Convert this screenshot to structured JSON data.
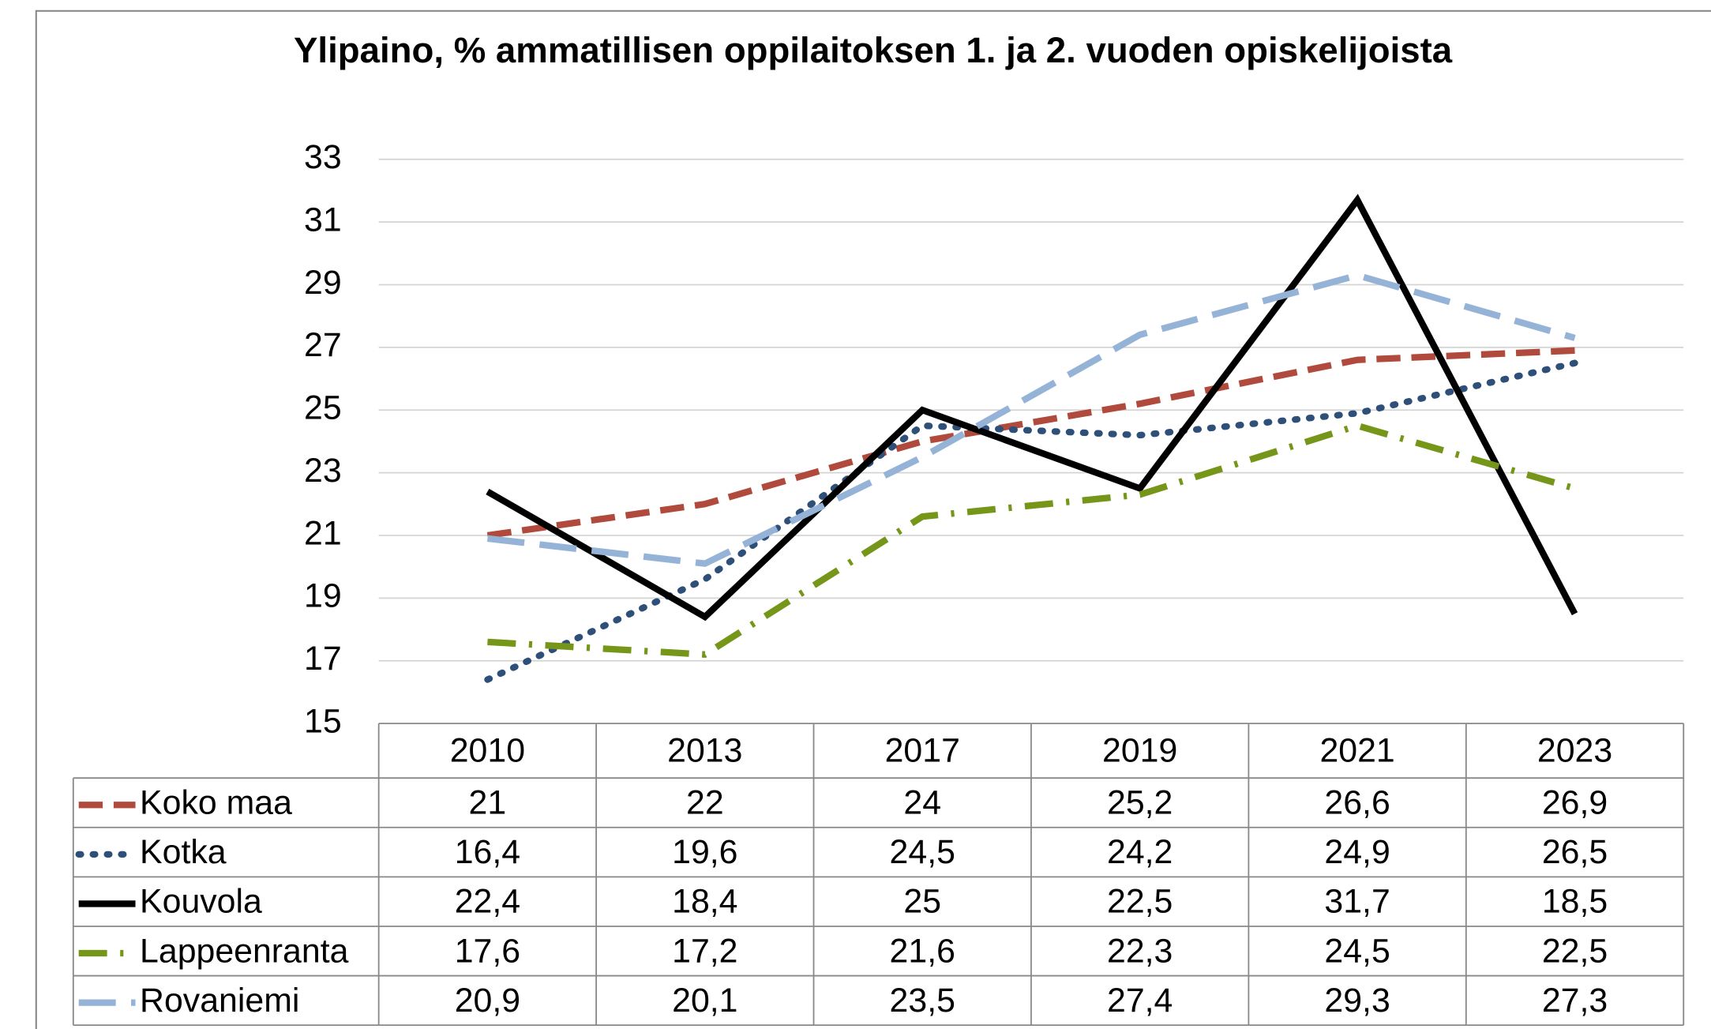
{
  "chart_data": {
    "type": "line",
    "title": "Ylipaino, % ammatillisen oppilaitoksen 1. ja 2. vuoden opiskelijoista",
    "categories": [
      "2010",
      "2013",
      "2017",
      "2019",
      "2021",
      "2023"
    ],
    "ylim": [
      15,
      33
    ],
    "yticks": [
      15,
      17,
      19,
      21,
      23,
      25,
      27,
      29,
      31,
      33
    ],
    "grid": true,
    "series": [
      {
        "name": "Koko maa",
        "color": "#b04a3c",
        "dash": "dashed",
        "values": [
          21,
          22,
          24,
          25.2,
          26.6,
          26.9
        ],
        "value_labels": [
          "21",
          "22",
          "24",
          "25,2",
          "26,6",
          "26,9"
        ]
      },
      {
        "name": "Kotka",
        "color": "#2e4f78",
        "dash": "dotted",
        "values": [
          16.4,
          19.6,
          24.5,
          24.2,
          24.9,
          26.5
        ],
        "value_labels": [
          "16,4",
          "19,6",
          "24,5",
          "24,2",
          "24,9",
          "26,5"
        ]
      },
      {
        "name": "Kouvola",
        "color": "#000000",
        "dash": "solid",
        "values": [
          22.4,
          18.4,
          25,
          22.5,
          31.7,
          18.5
        ],
        "value_labels": [
          "22,4",
          "18,4",
          "25",
          "22,5",
          "31,7",
          "18,5"
        ]
      },
      {
        "name": "Lappeenranta",
        "color": "#76961a",
        "dash": "dashdot",
        "values": [
          17.6,
          17.2,
          21.6,
          22.3,
          24.5,
          22.5
        ],
        "value_labels": [
          "17,6",
          "17,2",
          "21,6",
          "22,3",
          "24,5",
          "22,5"
        ]
      },
      {
        "name": "Rovaniemi",
        "color": "#95b3d7",
        "dash": "longdash",
        "values": [
          20.9,
          20.1,
          23.5,
          27.4,
          29.3,
          27.3
        ],
        "value_labels": [
          "20,9",
          "20,1",
          "23,5",
          "27,4",
          "29,3",
          "27,3"
        ]
      }
    ]
  }
}
